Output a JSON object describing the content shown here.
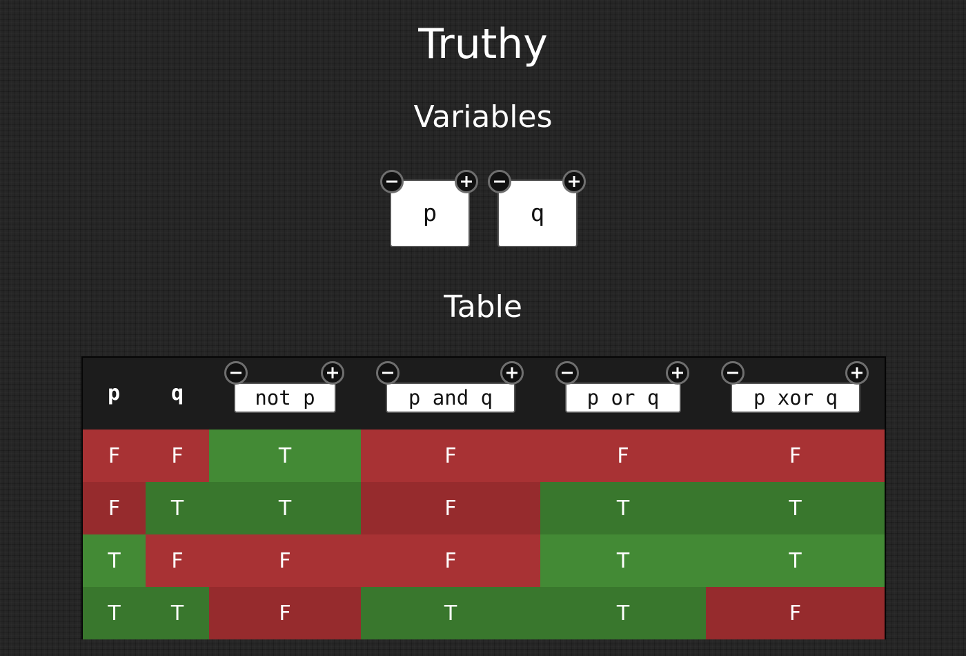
{
  "app_title": "Truthy",
  "variables_heading": "Variables",
  "table_heading": "Table",
  "variables": [
    "p",
    "q"
  ],
  "table": {
    "var_headers": [
      "p",
      "q"
    ],
    "expressions": [
      "not p",
      "p and q",
      "p or q",
      "p xor q"
    ],
    "rows": [
      [
        "F",
        "F",
        "T",
        "F",
        "F",
        "F"
      ],
      [
        "F",
        "T",
        "T",
        "F",
        "T",
        "T"
      ],
      [
        "T",
        "F",
        "F",
        "F",
        "T",
        "T"
      ],
      [
        "T",
        "T",
        "F",
        "T",
        "T",
        "F"
      ]
    ]
  },
  "colors": {
    "background": "#262626",
    "true_light": "#438a35",
    "true_dark": "#39772d",
    "false_light": "#a83234",
    "false_dark": "#962b2d",
    "table_header": "#1c1c1c"
  }
}
